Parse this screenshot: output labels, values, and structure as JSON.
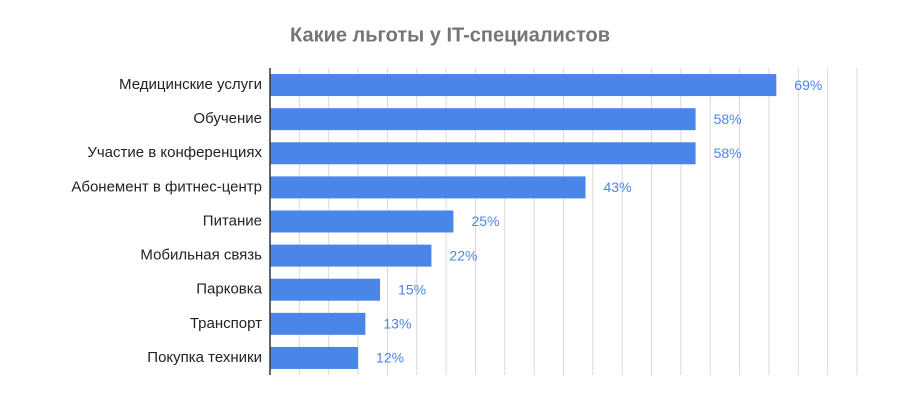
{
  "chart_data": {
    "type": "bar",
    "orientation": "horizontal",
    "title": "Какие льготы у IT-специалистов",
    "categories": [
      "Медицинские услуги",
      "Обучение",
      "Участие в конференциях",
      "Абонемент в фитнес-центр",
      "Питание",
      "Мобильная связь",
      "Парковка",
      "Транспорт",
      "Покупка техники"
    ],
    "values": [
      69,
      58,
      58,
      43,
      25,
      22,
      15,
      13,
      12
    ],
    "value_labels": [
      "69%",
      "58%",
      "58%",
      "43%",
      "25%",
      "22%",
      "15%",
      "13%",
      "12%"
    ],
    "color": "#4a86e8",
    "xlim": [
      0,
      80
    ],
    "xticks": [
      0,
      4,
      8,
      12,
      16,
      20,
      24,
      28,
      32,
      36,
      40,
      44,
      48,
      52,
      56,
      60,
      64,
      68,
      72,
      76,
      80
    ],
    "grid": true
  }
}
